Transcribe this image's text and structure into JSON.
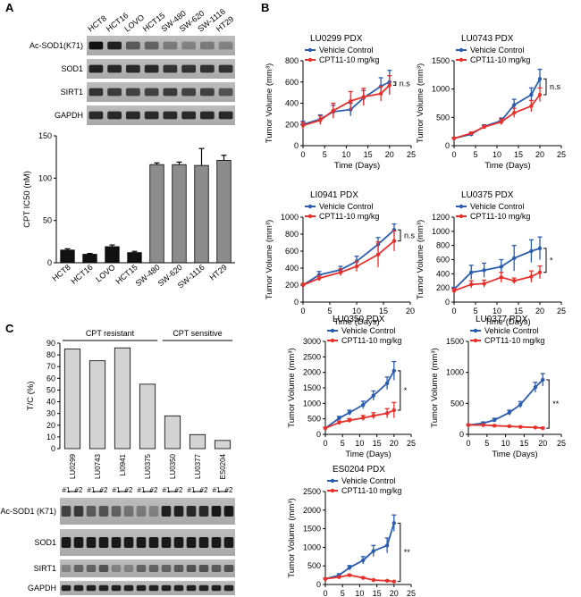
{
  "panel_labels": {
    "a": "A",
    "b": "B",
    "c": "C"
  },
  "colors": {
    "vehicle": "#2a5db0",
    "cpt": "#e8302b",
    "bar_a_low": "#111111",
    "bar_a_high": "#8c8c8c",
    "bar_c": "#d3d3d3"
  },
  "panel_a": {
    "cell_lines": [
      "HCT8",
      "HCT16",
      "LOVO",
      "HCT15",
      "SW-480",
      "SW-620",
      "SW-1116",
      "HT29"
    ],
    "blot_labels": [
      "Ac-SOD1(K71)",
      "SOD1",
      "SIRT1",
      "GAPDH"
    ]
  },
  "panel_c": {
    "group_labels": [
      "CPT resistant",
      "CPT sensitive"
    ],
    "models": [
      "LU0299",
      "LU0743",
      "LI0941",
      "LU0375",
      "LU0350",
      "LU0377",
      "ES0204"
    ],
    "replicate_labels": [
      "#1",
      "#2"
    ],
    "blot_labels": [
      "Ac-SOD1 (K71)",
      "SOD1",
      "SIRT1",
      "GAPDH"
    ]
  },
  "chart_data": [
    {
      "id": "ic50",
      "type": "bar",
      "title": "",
      "xlabel": "",
      "ylabel": "CPT IC50 (nM)",
      "ylim": [
        0,
        150
      ],
      "yticks": [
        0,
        50,
        100,
        150
      ],
      "categories": [
        "HCT8",
        "HCT16",
        "LOVO",
        "HCT15",
        "SW-480",
        "SW-620",
        "SW-1116",
        "HT29"
      ],
      "values": [
        15,
        10,
        19,
        12,
        116,
        116,
        115,
        121
      ],
      "errors": [
        1.5,
        1,
        2,
        1.5,
        2,
        3,
        20,
        6
      ]
    },
    {
      "id": "tc",
      "type": "bar",
      "title": "",
      "xlabel": "",
      "ylabel": "T/C (%)",
      "ylim": [
        0,
        90
      ],
      "yticks": [
        0,
        10,
        20,
        30,
        40,
        50,
        60,
        70,
        80,
        90
      ],
      "categories": [
        "LU0299",
        "LU0743",
        "LI0941",
        "LU0375",
        "LU0350",
        "LU0377",
        "ES0204"
      ],
      "values": [
        85,
        75,
        86,
        55,
        28,
        12,
        7
      ]
    },
    {
      "id": "lu0299",
      "type": "line",
      "title": "LU0299 PDX",
      "xlabel": "Time (Days)",
      "ylabel": "Tumor Volume (mm³)",
      "xlim": [
        0,
        25
      ],
      "ylim": [
        0,
        800
      ],
      "xticks": [
        0,
        5,
        10,
        15,
        20,
        25
      ],
      "yticks": [
        0,
        200,
        400,
        600,
        800
      ],
      "legend": [
        "Vehicle Control",
        "CPT11-10 mg/kg"
      ],
      "annotation": "n.s",
      "series": [
        {
          "name": "Vehicle Control",
          "x": [
            0,
            4,
            7,
            11,
            14,
            18,
            20
          ],
          "y": [
            200,
            250,
            320,
            340,
            450,
            560,
            600
          ],
          "err": [
            30,
            40,
            60,
            60,
            70,
            80,
            110
          ]
        },
        {
          "name": "CPT11-10 mg/kg",
          "x": [
            0,
            4,
            7,
            11,
            14,
            18,
            20
          ],
          "y": [
            190,
            240,
            330,
            420,
            460,
            490,
            570
          ],
          "err": [
            30,
            40,
            70,
            90,
            80,
            70,
            90
          ]
        }
      ]
    },
    {
      "id": "lu0743",
      "type": "line",
      "title": "LU0743 PDX",
      "xlabel": "Time (Days)",
      "ylabel": "Tumor Volume (mm³)",
      "xlim": [
        0,
        25
      ],
      "ylim": [
        0,
        1500
      ],
      "xticks": [
        0,
        5,
        10,
        15,
        20,
        25
      ],
      "yticks": [
        0,
        500,
        1000,
        1500
      ],
      "legend": [
        "Vehicle Control",
        "CPT11-10 mg/kg"
      ],
      "annotation": "n.s",
      "series": [
        {
          "name": "Vehicle Control",
          "x": [
            0,
            4,
            7,
            11,
            14,
            18,
            20
          ],
          "y": [
            130,
            200,
            340,
            440,
            720,
            900,
            1180
          ],
          "err": [
            15,
            20,
            30,
            50,
            100,
            120,
            170
          ]
        },
        {
          "name": "CPT11-10 mg/kg",
          "x": [
            0,
            4,
            7,
            11,
            14,
            18,
            20
          ],
          "y": [
            130,
            220,
            330,
            420,
            580,
            700,
            900
          ],
          "err": [
            15,
            20,
            30,
            50,
            80,
            100,
            120
          ]
        }
      ]
    },
    {
      "id": "li0941",
      "type": "line",
      "title": "LI0941 PDX",
      "xlabel": "Time (Days)",
      "ylabel": "Tumor Volume (mm³)",
      "xlim": [
        0,
        20
      ],
      "ylim": [
        0,
        1000
      ],
      "xticks": [
        0,
        5,
        10,
        15,
        20
      ],
      "yticks": [
        0,
        200,
        400,
        600,
        800,
        1000
      ],
      "legend": [
        "Vehicle Control",
        "CPT11-10 mg/kg"
      ],
      "annotation": "n.s",
      "series": [
        {
          "name": "Vehicle Control",
          "x": [
            0,
            3,
            7,
            10,
            14,
            17
          ],
          "y": [
            200,
            320,
            380,
            480,
            680,
            850
          ],
          "err": [
            20,
            40,
            40,
            60,
            80,
            70
          ]
        },
        {
          "name": "CPT11-10 mg/kg",
          "x": [
            0,
            3,
            7,
            10,
            14,
            17
          ],
          "y": [
            200,
            280,
            350,
            420,
            560,
            720
          ],
          "err": [
            20,
            30,
            40,
            60,
            150,
            120
          ]
        }
      ]
    },
    {
      "id": "lu0375",
      "type": "line",
      "title": "LU0375 PDX",
      "xlabel": "Time (Days)",
      "ylabel": "Tumor Volume (mm³)",
      "xlim": [
        0,
        25
      ],
      "ylim": [
        0,
        1200
      ],
      "xticks": [
        0,
        5,
        10,
        15,
        20,
        25
      ],
      "yticks": [
        0,
        200,
        400,
        600,
        800,
        1000,
        1200
      ],
      "legend": [
        "Vehicle Control",
        "CPT11-10 mg/kg"
      ],
      "annotation": "*",
      "series": [
        {
          "name": "Vehicle Control",
          "x": [
            0,
            4,
            7,
            11,
            14,
            18,
            20
          ],
          "y": [
            180,
            420,
            450,
            500,
            620,
            720,
            760
          ],
          "err": [
            30,
            100,
            100,
            100,
            180,
            160,
            160
          ]
        },
        {
          "name": "CPT11-10 mg/kg",
          "x": [
            0,
            4,
            7,
            11,
            14,
            18,
            20
          ],
          "y": [
            160,
            250,
            260,
            350,
            300,
            360,
            420
          ],
          "err": [
            30,
            50,
            50,
            70,
            40,
            80,
            90
          ]
        }
      ]
    },
    {
      "id": "lu0350",
      "type": "line",
      "title": "LU0350 PDX",
      "xlabel": "Time (Days)",
      "ylabel": "Tumor Volume (mm³)",
      "xlim": [
        0,
        25
      ],
      "ylim": [
        0,
        3000
      ],
      "xticks": [
        0,
        5,
        10,
        15,
        20,
        25
      ],
      "yticks": [
        0,
        500,
        1000,
        1500,
        2000,
        2500,
        3000
      ],
      "legend": [
        "Vehicle Control",
        "CPT11-10 mg/kg"
      ],
      "annotation": "*",
      "series": [
        {
          "name": "Vehicle Control",
          "x": [
            0,
            4,
            7,
            11,
            14,
            18,
            20
          ],
          "y": [
            200,
            520,
            700,
            950,
            1250,
            1650,
            2050
          ],
          "err": [
            30,
            60,
            80,
            120,
            150,
            200,
            300
          ]
        },
        {
          "name": "CPT11-10 mg/kg",
          "x": [
            0,
            4,
            7,
            11,
            14,
            18,
            20
          ],
          "y": [
            200,
            380,
            450,
            530,
            600,
            680,
            780
          ],
          "err": [
            30,
            50,
            60,
            80,
            100,
            150,
            250
          ]
        }
      ]
    },
    {
      "id": "lu0377",
      "type": "line",
      "title": "LU0377 PDX",
      "xlabel": "Time (Days)",
      "ylabel": "Tumor Volume (mm³)",
      "xlim": [
        0,
        25
      ],
      "ylim": [
        0,
        1500
      ],
      "xticks": [
        0,
        5,
        10,
        15,
        20,
        25
      ],
      "yticks": [
        0,
        500,
        1000,
        1500
      ],
      "legend": [
        "Vehicle Control",
        "CPT11-10 mg/kg"
      ],
      "annotation": "**",
      "series": [
        {
          "name": "Vehicle Control",
          "x": [
            0,
            4,
            7,
            11,
            14,
            18,
            20
          ],
          "y": [
            150,
            180,
            230,
            350,
            480,
            760,
            880
          ],
          "err": [
            10,
            20,
            30,
            40,
            50,
            80,
            100
          ]
        },
        {
          "name": "CPT11-10 mg/kg",
          "x": [
            0,
            4,
            7,
            11,
            14,
            18,
            20
          ],
          "y": [
            150,
            150,
            140,
            130,
            120,
            110,
            100
          ],
          "err": [
            10,
            10,
            10,
            10,
            10,
            10,
            10
          ]
        }
      ]
    },
    {
      "id": "es0204",
      "type": "line",
      "title": "ES0204 PDX",
      "xlabel": "Time (Days)",
      "ylabel": "Tumor Volume (mm³)",
      "xlim": [
        0,
        25
      ],
      "ylim": [
        0,
        2500
      ],
      "xticks": [
        0,
        5,
        10,
        15,
        20,
        25
      ],
      "yticks": [
        0,
        500,
        1000,
        1500,
        2000,
        2500
      ],
      "legend": [
        "Vehicle Control",
        "CPT11-10 mg/kg"
      ],
      "annotation": "**",
      "series": [
        {
          "name": "Vehicle Control",
          "x": [
            0,
            4,
            7,
            11,
            14,
            18,
            20
          ],
          "y": [
            150,
            250,
            450,
            650,
            900,
            1050,
            1650
          ],
          "err": [
            20,
            40,
            60,
            100,
            150,
            200,
            220
          ]
        },
        {
          "name": "CPT11-10 mg/kg",
          "x": [
            0,
            4,
            7,
            11,
            14,
            18,
            20
          ],
          "y": [
            150,
            200,
            250,
            180,
            120,
            100,
            80
          ],
          "err": [
            20,
            20,
            20,
            20,
            15,
            15,
            10
          ]
        }
      ]
    }
  ]
}
